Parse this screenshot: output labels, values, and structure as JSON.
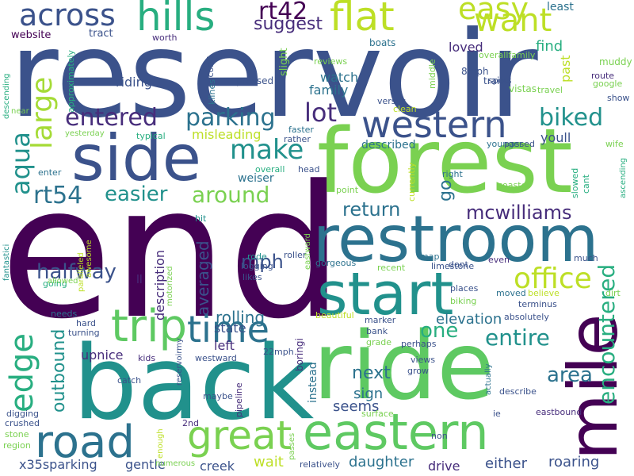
{
  "words": [
    {
      "text": "reservoir",
      "color": "#3b528b"
    },
    {
      "text": "end",
      "color": "#440154"
    },
    {
      "text": "forest",
      "color": "#7ad151"
    },
    {
      "text": "back",
      "color": "#21918c"
    },
    {
      "text": "ride",
      "color": "#5ec962"
    },
    {
      "text": "side",
      "color": "#3b528b"
    },
    {
      "text": "restroom",
      "color": "#2c728e"
    },
    {
      "text": "start",
      "color": "#21918c"
    },
    {
      "text": "mile",
      "color": "#440154"
    },
    {
      "text": "eastern",
      "color": "#5ec962"
    },
    {
      "text": "road",
      "color": "#2c728e"
    },
    {
      "text": "great",
      "color": "#7ad151"
    },
    {
      "text": "trip",
      "color": "#5ec962"
    },
    {
      "text": "western",
      "color": "#3b528b"
    },
    {
      "text": "hills",
      "color": "#28ae80"
    },
    {
      "text": "across",
      "color": "#3b528b"
    },
    {
      "text": "flat",
      "color": "#bddf26"
    },
    {
      "text": "easy",
      "color": "#bddf26"
    },
    {
      "text": "want",
      "color": "#bddf26"
    },
    {
      "text": "edge",
      "color": "#28ae80"
    },
    {
      "text": "large",
      "color": "#a5db36"
    },
    {
      "text": "time",
      "color": "#2c728e"
    },
    {
      "text": "rt42",
      "color": "#440154"
    },
    {
      "text": "suggest",
      "color": "#472d7b"
    },
    {
      "text": "lot",
      "color": "#472d7b"
    },
    {
      "text": "entered",
      "color": "#472d7b"
    },
    {
      "text": "parking",
      "color": "#2c728e"
    },
    {
      "text": "make",
      "color": "#21918c"
    },
    {
      "text": "biked",
      "color": "#21918c"
    },
    {
      "text": "aqua",
      "color": "#21918c"
    },
    {
      "text": "rt54",
      "color": "#2c728e"
    },
    {
      "text": "easier",
      "color": "#21918c"
    },
    {
      "text": "around",
      "color": "#7ad151"
    },
    {
      "text": "return",
      "color": "#2c728e"
    },
    {
      "text": "mcwilliams",
      "color": "#472d7b"
    },
    {
      "text": "office",
      "color": "#bddf26"
    },
    {
      "text": "halfway",
      "color": "#3b528b"
    },
    {
      "text": "mph",
      "color": "#3b528b"
    },
    {
      "text": "encountered",
      "color": "#28ae80"
    },
    {
      "text": "entire",
      "color": "#21918c"
    },
    {
      "text": "one",
      "color": "#28ae80"
    },
    {
      "text": "area",
      "color": "#2c728e"
    },
    {
      "text": "next",
      "color": "#2c728e"
    },
    {
      "text": "outbound",
      "color": "#21918c"
    },
    {
      "text": "averaged",
      "color": "#3b528b"
    },
    {
      "text": "rolling",
      "color": "#2c728e"
    },
    {
      "text": "either",
      "color": "#3b528b"
    },
    {
      "text": "go",
      "color": "#2c728e"
    },
    {
      "text": "sign",
      "color": "#2c728e"
    },
    {
      "text": "seems",
      "color": "#3b528b"
    },
    {
      "text": "daughter",
      "color": "#2c728e"
    },
    {
      "text": "drive",
      "color": "#472d7b"
    },
    {
      "text": "roaring",
      "color": "#3b528b"
    },
    {
      "text": "x35sparking",
      "color": "#3b528b"
    },
    {
      "text": "gentle",
      "color": "#3b528b"
    },
    {
      "text": "creek",
      "color": "#3b528b"
    },
    {
      "text": "wait",
      "color": "#bddf26"
    },
    {
      "text": "elevation",
      "color": "#2c728e"
    },
    {
      "text": "state",
      "color": "#3b528b"
    },
    {
      "text": "left",
      "color": "#472d7b"
    },
    {
      "text": "upnice",
      "color": "#472d7b"
    },
    {
      "text": "description",
      "color": "#472d7b"
    },
    {
      "text": "misleading",
      "color": "#bddf26"
    },
    {
      "text": "riding",
      "color": "#3b528b"
    },
    {
      "text": "watch",
      "color": "#2c728e"
    },
    {
      "text": "family",
      "color": "#2c728e"
    },
    {
      "text": "loved",
      "color": "#472d7b"
    },
    {
      "text": "find",
      "color": "#28ae80"
    },
    {
      "text": "least",
      "color": "#2c728e"
    },
    {
      "text": "past",
      "color": "#bddf26"
    },
    {
      "text": "youll",
      "color": "#3b528b"
    },
    {
      "text": "described",
      "color": "#2c728e"
    },
    {
      "text": "weiser",
      "color": "#2c728e"
    },
    {
      "text": "website",
      "color": "#440154"
    },
    {
      "text": "tract",
      "color": "#3b528b"
    },
    {
      "text": "worth",
      "color": "#472d7b"
    },
    {
      "text": "boats",
      "color": "#2c728e"
    },
    {
      "text": "overallfamily",
      "color": "#7ad151"
    },
    {
      "text": "second",
      "color": "#3b528b"
    },
    {
      "text": "klines",
      "color": "#2c728e"
    },
    {
      "text": "pressed",
      "color": "#3b528b"
    },
    {
      "text": "slight",
      "color": "#7ad151"
    },
    {
      "text": "8mph",
      "color": "#3b528b"
    },
    {
      "text": "trails",
      "color": "#3b528b"
    },
    {
      "text": "middle",
      "color": "#7ad151"
    },
    {
      "text": "vistas",
      "color": "#7ad151"
    },
    {
      "text": "muddy",
      "color": "#7ad151"
    },
    {
      "text": "route",
      "color": "#472d7b"
    },
    {
      "text": "google",
      "color": "#7ad151"
    },
    {
      "text": "show",
      "color": "#3b528b"
    },
    {
      "text": "reviews",
      "color": "#7ad151"
    },
    {
      "text": "spots",
      "color": "#3b528b"
    },
    {
      "text": "travel",
      "color": "#7ad151"
    },
    {
      "text": "versus",
      "color": "#3b528b"
    },
    {
      "text": "clean",
      "color": "#bddf26"
    },
    {
      "text": "approximately",
      "color": "#28ae80"
    },
    {
      "text": "descending",
      "color": "#28ae80"
    },
    {
      "text": "near",
      "color": "#7ad151"
    },
    {
      "text": "yesterday",
      "color": "#7ad151"
    },
    {
      "text": "typical",
      "color": "#28ae80"
    },
    {
      "text": "faster",
      "color": "#2c728e"
    },
    {
      "text": "rather",
      "color": "#3b528b"
    },
    {
      "text": "younger",
      "color": "#2c728e"
    },
    {
      "text": "passed",
      "color": "#3b528b"
    },
    {
      "text": "wife",
      "color": "#7ad151"
    },
    {
      "text": "overall",
      "color": "#28ae80"
    },
    {
      "text": "head",
      "color": "#3b528b"
    },
    {
      "text": "currently",
      "color": "#bddf26"
    },
    {
      "text": "right",
      "color": "#2c728e"
    },
    {
      "text": "coaster",
      "color": "#7ad151"
    },
    {
      "text": "slowed",
      "color": "#28ae80"
    },
    {
      "text": "cant",
      "color": "#28ae80"
    },
    {
      "text": "ascending",
      "color": "#28ae80"
    },
    {
      "text": "enter",
      "color": "#2c728e"
    },
    {
      "text": "point",
      "color": "#7ad151"
    },
    {
      "text": "fantastici",
      "color": "#21918c"
    },
    {
      "text": "going",
      "color": "#28ae80"
    },
    {
      "text": "paralleled",
      "color": "#bddf26"
    },
    {
      "text": "awesome",
      "color": "#bddf26"
    },
    {
      "text": "motorized",
      "color": "#7ad151"
    },
    {
      "text": "hit",
      "color": "#21918c"
    },
    {
      "text": "rode",
      "color": "#21918c"
    },
    {
      "text": "logging",
      "color": "#3b528b"
    },
    {
      "text": "likes",
      "color": "#3b528b"
    },
    {
      "text": "roller",
      "color": "#3b528b"
    },
    {
      "text": "map",
      "color": "#2c728e"
    },
    {
      "text": "eastward",
      "color": "#7ad151"
    },
    {
      "text": "gorgeous",
      "color": "#2c728e"
    },
    {
      "text": "dont",
      "color": "#3b528b"
    },
    {
      "text": "even",
      "color": "#472d7b"
    },
    {
      "text": "much",
      "color": "#3b528b"
    },
    {
      "text": "limestone",
      "color": "#3b528b"
    },
    {
      "text": "recent",
      "color": "#7ad151"
    },
    {
      "text": "places",
      "color": "#3b528b"
    },
    {
      "text": "biking",
      "color": "#7ad151"
    },
    {
      "text": "moved",
      "color": "#2c728e"
    },
    {
      "text": "believe",
      "color": "#bddf26"
    },
    {
      "text": "dirt",
      "color": "#7ad151"
    },
    {
      "text": "terminus",
      "color": "#3b528b"
    },
    {
      "text": "allowed",
      "color": "#7ad151"
    },
    {
      "text": "ll",
      "color": "#472d7b"
    },
    {
      "text": "beautiful",
      "color": "#bddf26"
    },
    {
      "text": "marker",
      "color": "#3b528b"
    },
    {
      "text": "absolutely",
      "color": "#3b528b"
    },
    {
      "text": "needs",
      "color": "#2c728e"
    },
    {
      "text": "hard",
      "color": "#3b528b"
    },
    {
      "text": "turning",
      "color": "#3b528b"
    },
    {
      "text": "kids",
      "color": "#472d7b"
    },
    {
      "text": "reservoirmy",
      "color": "#3b528b"
    },
    {
      "text": "westward",
      "color": "#3b528b"
    },
    {
      "text": "22mph",
      "color": "#3b528b"
    },
    {
      "text": "bank",
      "color": "#3b528b"
    },
    {
      "text": "grade",
      "color": "#7ad151"
    },
    {
      "text": "perhaps",
      "color": "#3b528b"
    },
    {
      "text": "views",
      "color": "#3b528b"
    },
    {
      "text": "grow",
      "color": "#3b528b"
    },
    {
      "text": "boringi",
      "color": "#472d7b"
    },
    {
      "text": "instead",
      "color": "#2c728e"
    },
    {
      "text": "actually",
      "color": "#2c728e"
    },
    {
      "text": "describe",
      "color": "#3b528b"
    },
    {
      "text": "catch",
      "color": "#3b528b"
    },
    {
      "text": "maybe",
      "color": "#3b528b"
    },
    {
      "text": "pipeline",
      "color": "#472d7b"
    },
    {
      "text": "digging",
      "color": "#3b528b"
    },
    {
      "text": "crushed",
      "color": "#3b528b"
    },
    {
      "text": "stone",
      "color": "#7ad151"
    },
    {
      "text": "region",
      "color": "#7ad151"
    },
    {
      "text": "2nd",
      "color": "#472d7b"
    },
    {
      "text": "enough",
      "color": "#bddf26"
    },
    {
      "text": "numerous",
      "color": "#7ad151"
    },
    {
      "text": "passes",
      "color": "#7ad151"
    },
    {
      "text": "surface",
      "color": "#7ad151"
    },
    {
      "text": "relatively",
      "color": "#3b528b"
    },
    {
      "text": "non",
      "color": "#3b528b"
    },
    {
      "text": "ie",
      "color": "#3b528b"
    },
    {
      "text": "eastbound",
      "color": "#472d7b"
    }
  ]
}
